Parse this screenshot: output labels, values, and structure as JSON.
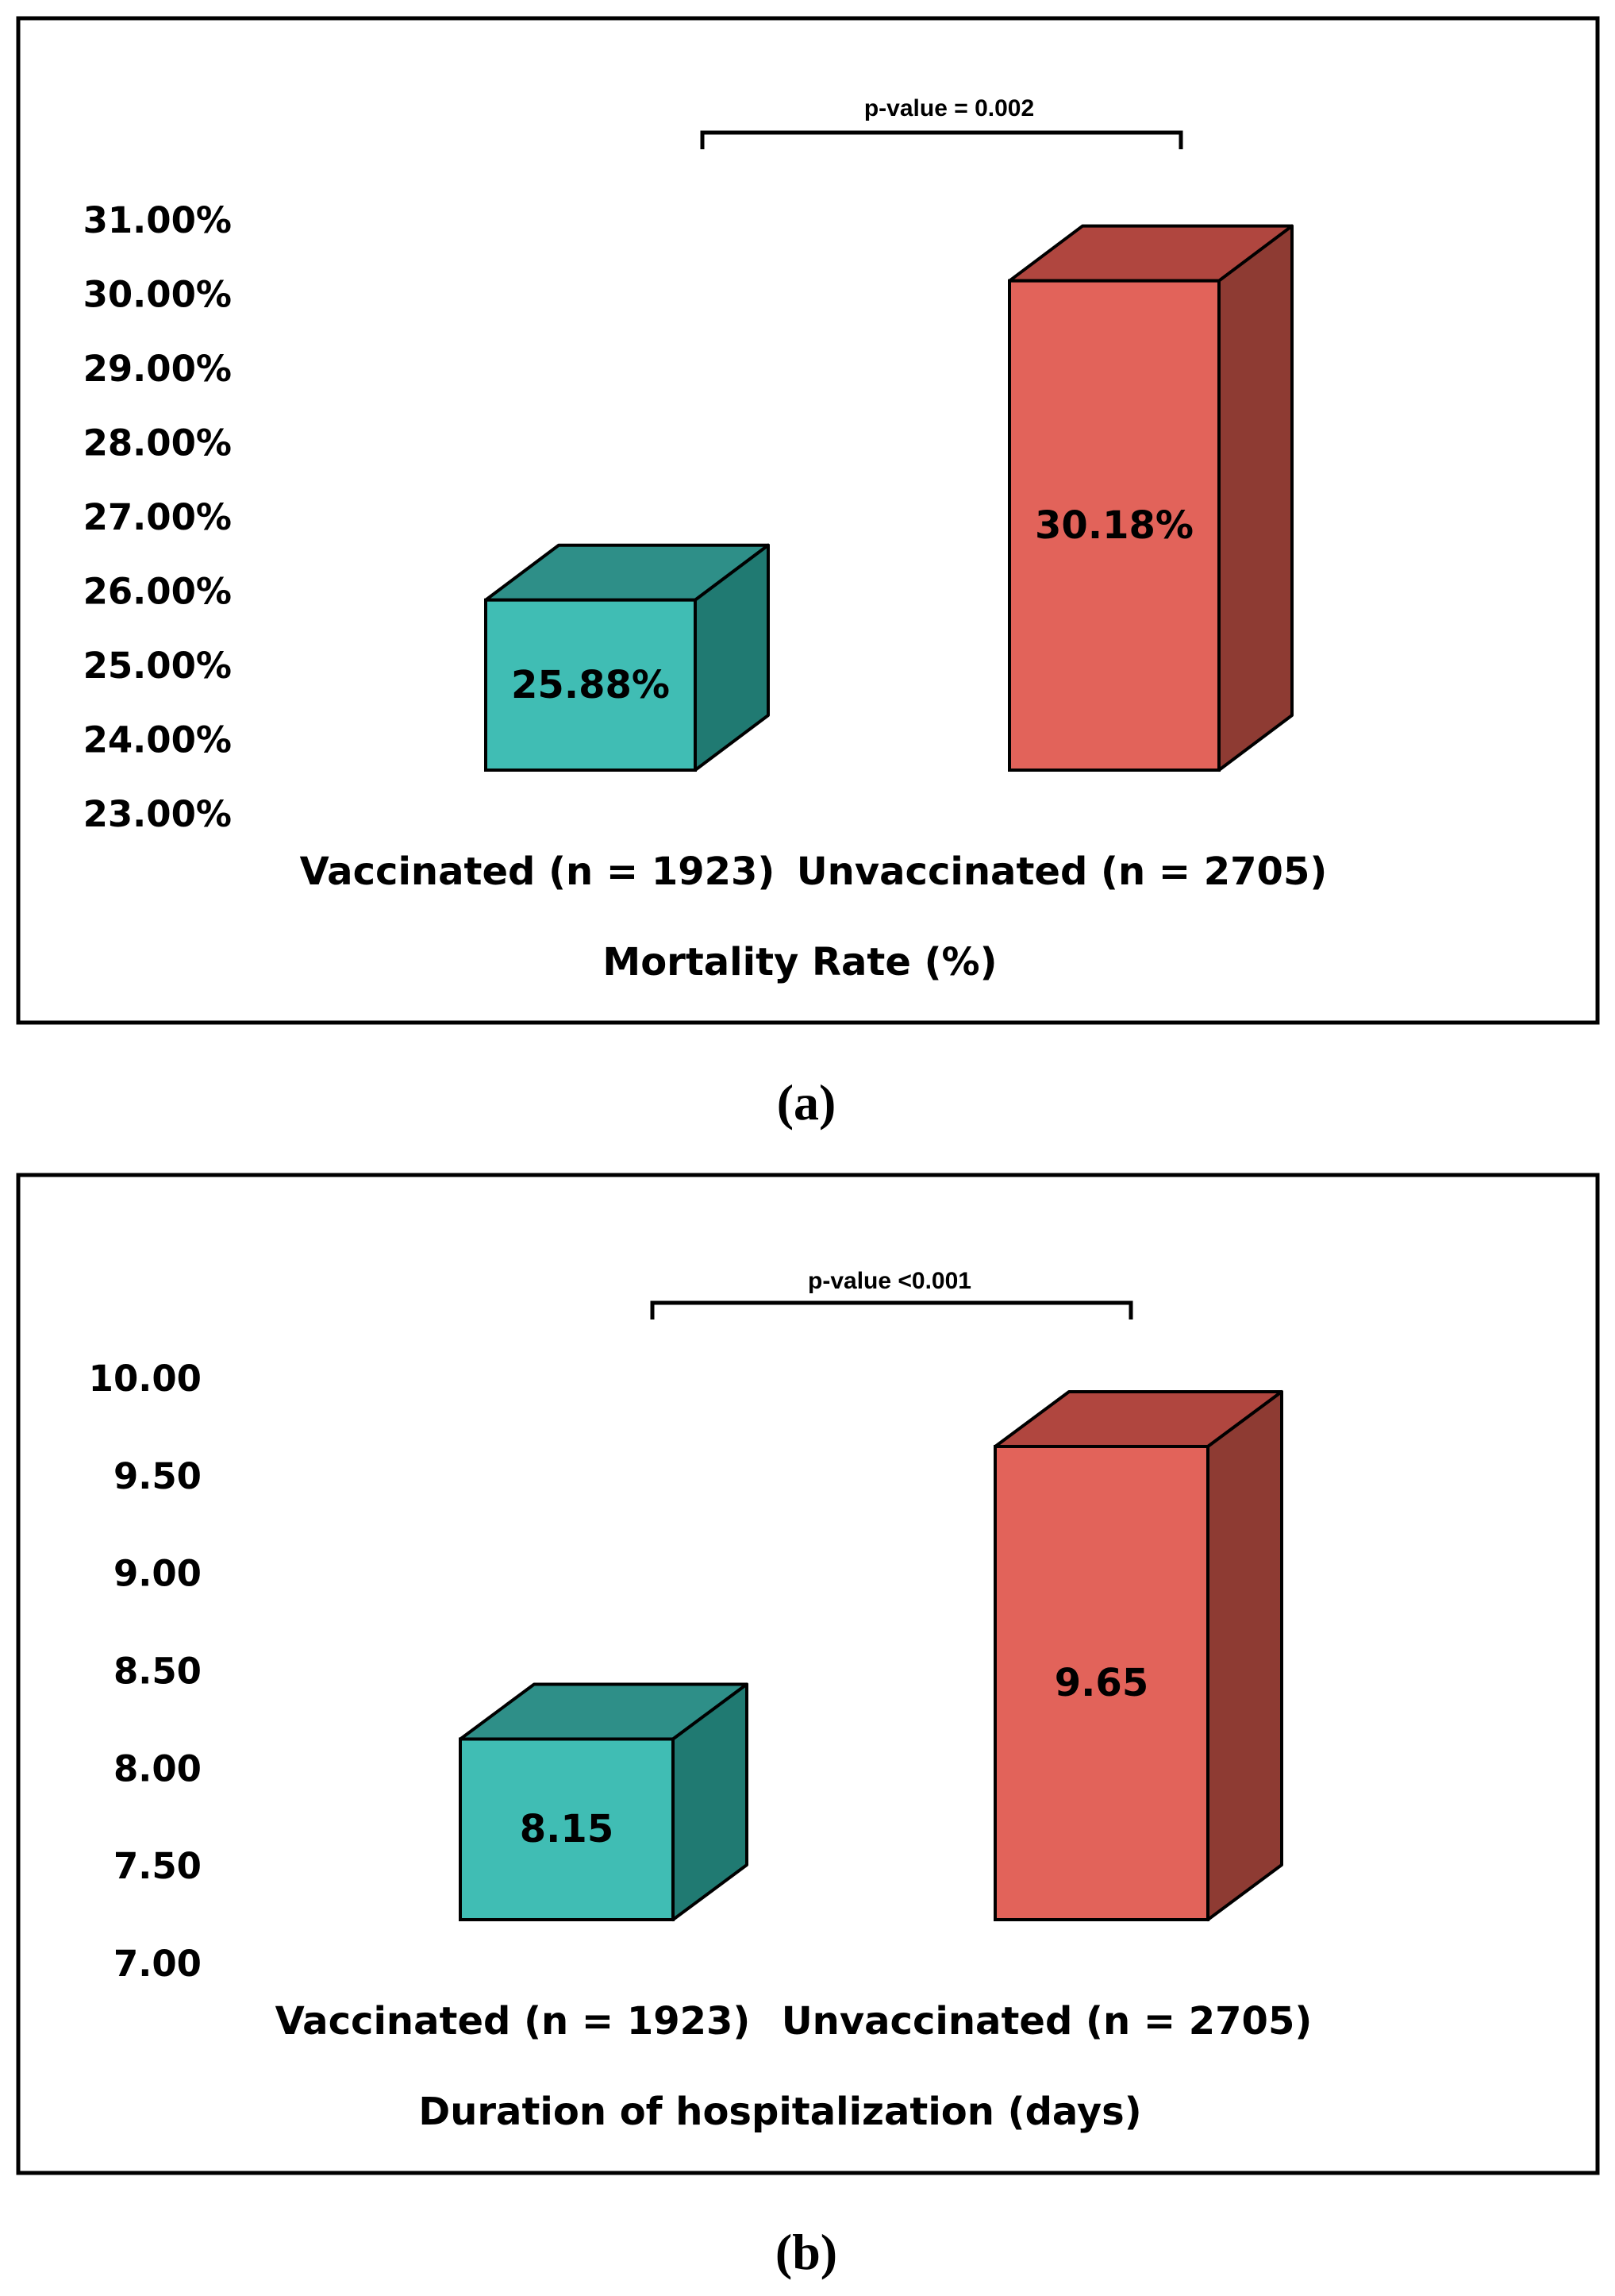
{
  "colors": {
    "vaccinated_front": "#40BDB4",
    "vaccinated_top": "#2E8F88",
    "vaccinated_side": "#207A72",
    "unvaccinated_front": "#E2635A",
    "unvaccinated_top": "#B0463F",
    "unvaccinated_side": "#8E3B33",
    "border": "#000000"
  },
  "chart_data": [
    {
      "panel": "(a)",
      "type": "bar",
      "style": "3d-box",
      "categories": [
        "Vaccinated (n = 1923)",
        "Unvaccinated (n = 2705)"
      ],
      "values": [
        25.88,
        30.18
      ],
      "data_labels": [
        "25.88%",
        "30.18%"
      ],
      "xlabel": "Mortality Rate (%)",
      "ylabel": "",
      "ylim": [
        23,
        31
      ],
      "y_ticks": [
        23,
        24,
        25,
        26,
        27,
        28,
        29,
        30,
        31
      ],
      "y_tick_labels": [
        "23.00%",
        "24.00%",
        "25.00%",
        "26.00%",
        "27.00%",
        "28.00%",
        "29.00%",
        "30.00%",
        "31.00%"
      ],
      "significance": "p-value = 0.002",
      "grid": false,
      "legend": "none"
    },
    {
      "panel": "(b)",
      "type": "bar",
      "style": "3d-box",
      "categories": [
        "Vaccinated (n = 1923)",
        "Unvaccinated (n = 2705)"
      ],
      "values": [
        8.15,
        9.65
      ],
      "data_labels": [
        "8.15",
        "9.65"
      ],
      "xlabel": "Duration of hospitalization (days)",
      "ylabel": "",
      "ylim": [
        7,
        10
      ],
      "y_ticks": [
        7,
        7.5,
        8,
        8.5,
        9,
        9.5,
        10
      ],
      "y_tick_labels": [
        "7.00",
        "7.50",
        "8.00",
        "8.50",
        "9.00",
        "9.50",
        "10.00"
      ],
      "significance": "p-value <0.001",
      "grid": false,
      "legend": "none"
    }
  ]
}
